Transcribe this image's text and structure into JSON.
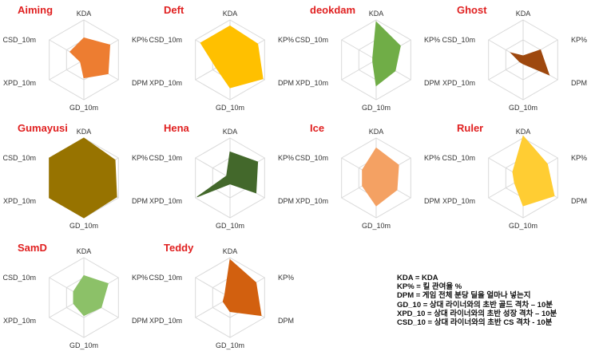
{
  "chart_data": {
    "type": "radar",
    "axes": [
      "KDA",
      "KP%",
      "DPM",
      "GD_10m",
      "XPD_10m",
      "CSD_10m"
    ],
    "range": [
      0,
      1
    ],
    "grid": true,
    "players": [
      {
        "name": "Aiming",
        "color": "#ED7D31",
        "values": [
          0.55,
          0.75,
          0.7,
          0.45,
          0.1,
          0.4
        ]
      },
      {
        "name": "Deft",
        "color": "#FFC000",
        "values": [
          0.85,
          0.8,
          0.95,
          0.7,
          0.4,
          0.85
        ]
      },
      {
        "name": "deokdam",
        "color": "#70AD47",
        "values": [
          0.95,
          0.7,
          0.55,
          0.65,
          0.1,
          0.1
        ]
      },
      {
        "name": "Ghost",
        "color": "#9E480E",
        "values": [
          0.1,
          0.5,
          0.75,
          0.1,
          0.1,
          0.35
        ]
      },
      {
        "name": "Gumayusi",
        "color": "#977300",
        "values": [
          1.0,
          0.9,
          0.95,
          1.0,
          1.0,
          1.0
        ]
      },
      {
        "name": "Hena",
        "color": "#43682B",
        "values": [
          0.65,
          0.8,
          0.75,
          0.15,
          0.95,
          0.1
        ]
      },
      {
        "name": "Ice",
        "color": "#F4A163",
        "values": [
          0.75,
          0.65,
          0.6,
          0.7,
          0.4,
          0.4
        ]
      },
      {
        "name": "Ruler",
        "color": "#FFCD33",
        "values": [
          1.05,
          0.7,
          0.9,
          0.7,
          0.25,
          0.3
        ]
      },
      {
        "name": "SamD",
        "color": "#8CC168",
        "values": [
          0.55,
          0.7,
          0.5,
          0.45,
          0.3,
          0.3
        ]
      },
      {
        "name": "Teddy",
        "color": "#D2600F",
        "values": [
          0.95,
          0.75,
          0.9,
          0.35,
          0.2,
          0.15
        ]
      }
    ]
  },
  "legend": [
    "KDA = KDA",
    "KP% = 킬 관여율 %",
    "DPM = 게임 전체 분당 딜을 얼마나 넣는지",
    "GD_10 = 상대 라이너와의 초반 골드 격차 – 10분",
    "XPD_10 = 상대 라이너와의 초반 성장 격차 – 10분",
    "CSD_10 = 상대 라이너와의 초반 CS 격차 - 10분"
  ],
  "colors": {
    "title": "#E02020",
    "grid": "#D9D9D9",
    "axis_text": "#333333"
  }
}
